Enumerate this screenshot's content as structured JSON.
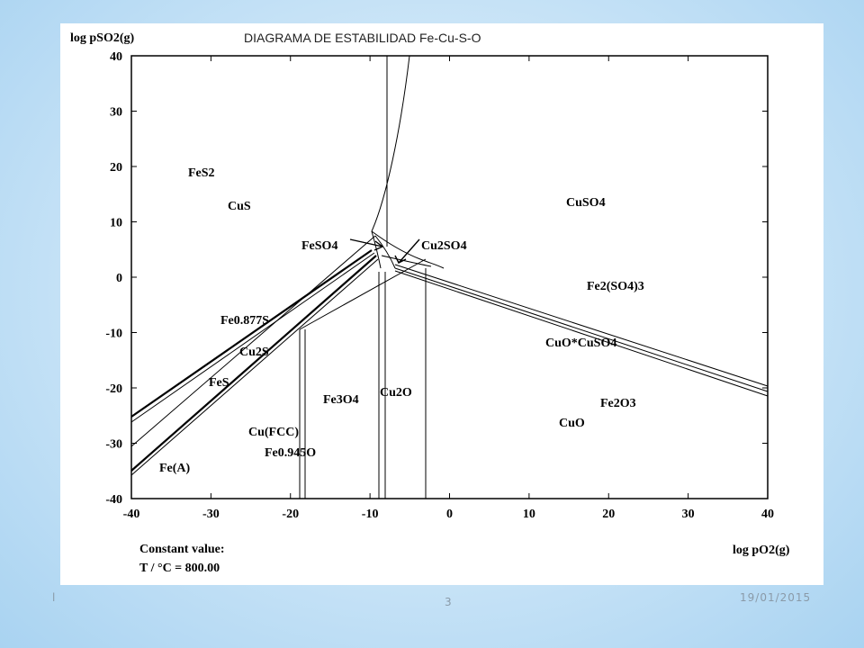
{
  "slide": {
    "footer_left": "l",
    "page_number": "3",
    "date": "19/01/2015"
  },
  "diagram": {
    "title": "DIAGRAMA DE ESTABILIDAD Fe-Cu-S-O",
    "ylabel": "log pSO2(g)",
    "xlabel": "log pO2(g)",
    "xlim": [
      -40,
      40
    ],
    "ylim": [
      -40,
      40
    ],
    "x_ticks": [
      "-40",
      "-30",
      "-20",
      "-10",
      "0",
      "10",
      "20",
      "30",
      "40"
    ],
    "y_ticks": [
      "40",
      "30",
      "20",
      "10",
      "0",
      "-10",
      "-20",
      "-30",
      "-40"
    ],
    "constant_label": "Constant value:",
    "constant_value": "T / °C = 800.00",
    "phases": [
      {
        "id": "fes2",
        "label": "FeS2"
      },
      {
        "id": "cus",
        "label": "CuS"
      },
      {
        "id": "cuso4",
        "label": "CuSO4"
      },
      {
        "id": "feso4",
        "label": "FeSO4"
      },
      {
        "id": "cu2so4",
        "label": "Cu2SO4"
      },
      {
        "id": "fe2so43",
        "label": "Fe2(SO4)3"
      },
      {
        "id": "fe0877s",
        "label": "Fe0.877S"
      },
      {
        "id": "cuocuso4",
        "label": "CuO*CuSO4"
      },
      {
        "id": "cu2s",
        "label": "Cu2S"
      },
      {
        "id": "fes",
        "label": "FeS"
      },
      {
        "id": "fe3o4",
        "label": "Fe3O4"
      },
      {
        "id": "cu2o",
        "label": "Cu2O"
      },
      {
        "id": "fe2o3",
        "label": "Fe2O3"
      },
      {
        "id": "cuo",
        "label": "CuO"
      },
      {
        "id": "cufcc",
        "label": "Cu(FCC)"
      },
      {
        "id": "fe0945o",
        "label": "Fe0.945O"
      },
      {
        "id": "fea",
        "label": "Fe(A)"
      }
    ]
  }
}
